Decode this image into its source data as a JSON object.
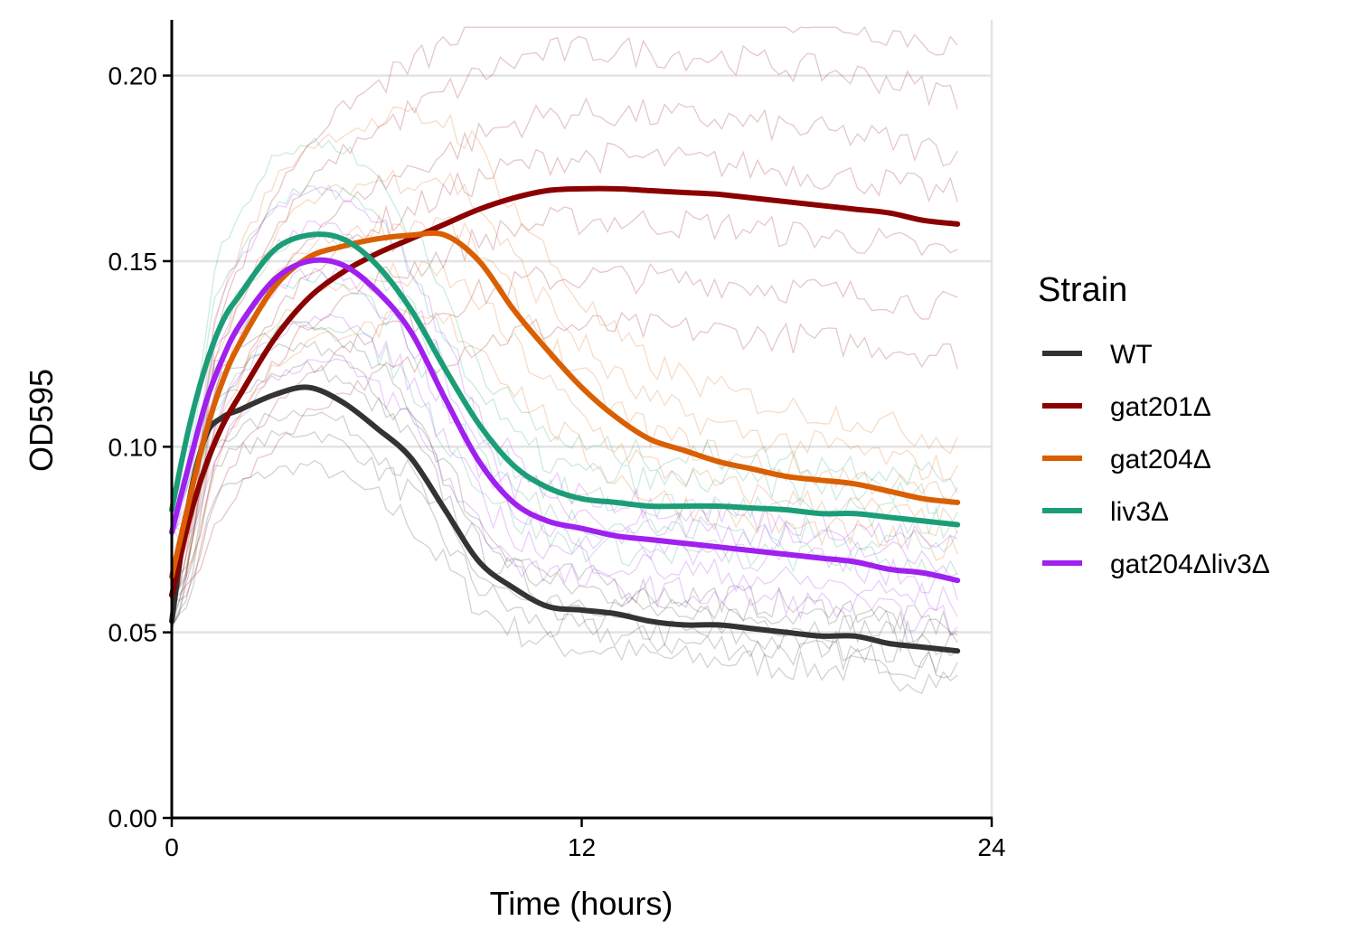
{
  "chart_data": {
    "type": "line",
    "title": "",
    "xlabel": "Time (hours)",
    "ylabel": "OD595",
    "xlim": [
      0,
      24
    ],
    "ylim": [
      0,
      0.215
    ],
    "x_ticks": [
      0,
      12,
      24
    ],
    "y_ticks": [
      0.0,
      0.05,
      0.1,
      0.15,
      0.2
    ],
    "x_tick_labels": [
      "0",
      "12",
      "24"
    ],
    "y_tick_labels": [
      "0.00",
      "0.05",
      "0.10",
      "0.15",
      "0.20"
    ],
    "grid": "horizontal major lines",
    "legend": {
      "title": "Strain",
      "position": "right"
    },
    "series": [
      {
        "name": "WT",
        "color": "#333333",
        "x": [
          0,
          0.5,
          1,
          1.5,
          2,
          3,
          4,
          5,
          6,
          7,
          8,
          9,
          10,
          11,
          12,
          13,
          14,
          15,
          16,
          17,
          18,
          19,
          20,
          21,
          22,
          23
        ],
        "y": [
          0.053,
          0.085,
          0.103,
          0.108,
          0.11,
          0.114,
          0.116,
          0.112,
          0.105,
          0.097,
          0.083,
          0.069,
          0.062,
          0.057,
          0.056,
          0.055,
          0.053,
          0.052,
          0.052,
          0.051,
          0.05,
          0.049,
          0.049,
          0.047,
          0.046,
          0.045
        ]
      },
      {
        "name": "gat201Δ",
        "color": "#8b0000",
        "x": [
          0,
          0.5,
          1,
          1.5,
          2,
          3,
          4,
          5,
          6,
          7,
          8,
          9,
          10,
          11,
          12,
          13,
          14,
          15,
          16,
          17,
          18,
          19,
          20,
          21,
          22,
          23
        ],
        "y": [
          0.06,
          0.08,
          0.095,
          0.106,
          0.114,
          0.129,
          0.14,
          0.147,
          0.152,
          0.156,
          0.16,
          0.164,
          0.167,
          0.169,
          0.1695,
          0.1695,
          0.169,
          0.1685,
          0.168,
          0.167,
          0.166,
          0.165,
          0.164,
          0.163,
          0.161,
          0.16
        ]
      },
      {
        "name": "gat204Δ",
        "color": "#d95f02",
        "x": [
          0,
          0.5,
          1,
          1.5,
          2,
          3,
          4,
          5,
          6,
          7,
          8,
          9,
          10,
          11,
          12,
          13,
          14,
          15,
          16,
          17,
          18,
          19,
          20,
          21,
          22,
          23
        ],
        "y": [
          0.065,
          0.085,
          0.104,
          0.118,
          0.128,
          0.143,
          0.151,
          0.154,
          0.156,
          0.157,
          0.157,
          0.15,
          0.137,
          0.126,
          0.116,
          0.108,
          0.102,
          0.099,
          0.096,
          0.094,
          0.092,
          0.091,
          0.09,
          0.088,
          0.086,
          0.085
        ]
      },
      {
        "name": "liv3Δ",
        "color": "#1b9e77",
        "x": [
          0,
          0.5,
          1,
          1.5,
          2,
          3,
          4,
          5,
          6,
          7,
          8,
          9,
          10,
          11,
          12,
          13,
          14,
          15,
          16,
          17,
          18,
          19,
          20,
          21,
          22,
          23
        ],
        "y": [
          0.083,
          0.105,
          0.122,
          0.134,
          0.141,
          0.153,
          0.157,
          0.156,
          0.149,
          0.137,
          0.121,
          0.106,
          0.095,
          0.089,
          0.086,
          0.085,
          0.084,
          0.084,
          0.084,
          0.0835,
          0.083,
          0.082,
          0.082,
          0.081,
          0.08,
          0.079
        ]
      },
      {
        "name": "gat204Δliv3Δ",
        "color": "#a020f0",
        "x": [
          0,
          0.5,
          1,
          1.5,
          2,
          3,
          4,
          5,
          6,
          7,
          8,
          9,
          10,
          11,
          12,
          13,
          14,
          15,
          16,
          17,
          18,
          19,
          20,
          21,
          22,
          23
        ],
        "y": [
          0.077,
          0.095,
          0.112,
          0.124,
          0.133,
          0.145,
          0.15,
          0.149,
          0.142,
          0.131,
          0.113,
          0.096,
          0.085,
          0.08,
          0.078,
          0.076,
          0.075,
          0.074,
          0.073,
          0.072,
          0.071,
          0.07,
          0.069,
          0.067,
          0.066,
          0.064
        ]
      }
    ]
  }
}
